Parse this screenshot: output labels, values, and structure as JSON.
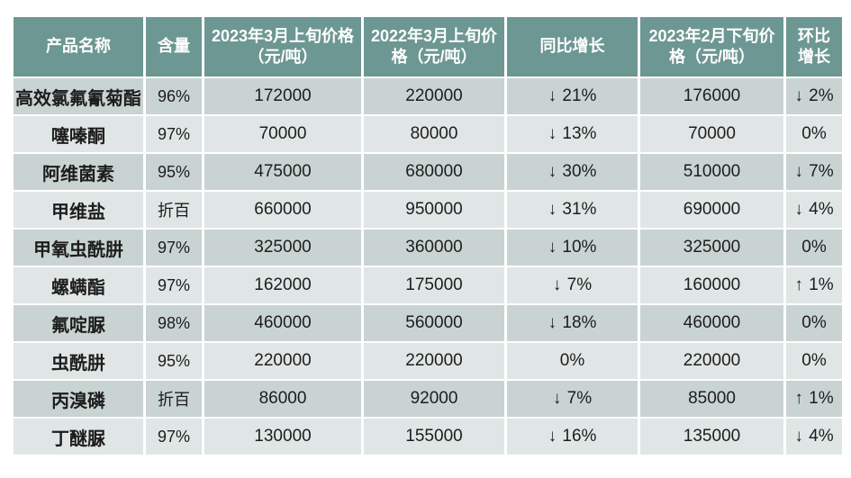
{
  "chart_data": {
    "type": "table",
    "title": "",
    "columns": [
      "产品名称",
      "含量",
      "2023年3月上旬价格（元/吨）",
      "2022年3月上旬价格（元/吨）",
      "同比增长",
      "2023年2月下旬价格（元/吨）",
      "环比增长"
    ],
    "rows": [
      [
        "高效氯氟氰菊酯",
        "96%",
        "172000",
        "220000",
        "↓21%",
        "176000",
        "↓2%"
      ],
      [
        "噻嗪酮",
        "97%",
        "70000",
        "80000",
        "↓13%",
        "70000",
        "0%"
      ],
      [
        "阿维菌素",
        "95%",
        "475000",
        "680000",
        "↓30%",
        "510000",
        "↓7%"
      ],
      [
        "甲维盐",
        "折百",
        "660000",
        "950000",
        "↓31%",
        "690000",
        "↓4%"
      ],
      [
        "甲氧虫酰肼",
        "97%",
        "325000",
        "360000",
        "↓10%",
        "325000",
        "0%"
      ],
      [
        "螺螨酯",
        "97%",
        "162000",
        "175000",
        "↓7%",
        "160000",
        "↑1%"
      ],
      [
        "氟啶脲",
        "98%",
        "460000",
        "560000",
        "↓18%",
        "460000",
        "0%"
      ],
      [
        "虫酰肼",
        "95%",
        "220000",
        "220000",
        "0%",
        "220000",
        "0%"
      ],
      [
        "丙溴磷",
        "折百",
        "86000",
        "92000",
        "↓7%",
        "85000",
        "↑1%"
      ],
      [
        "丁醚脲",
        "97%",
        "130000",
        "155000",
        "↓16%",
        "135000",
        "↓4%"
      ]
    ]
  },
  "colors": {
    "header_bg": "#6d9793",
    "header_text": "#ffffff",
    "row_odd_bg": "#c9d4d2",
    "row_even_bg": "#e0e6e5",
    "body_text": "#1d1d1d"
  }
}
